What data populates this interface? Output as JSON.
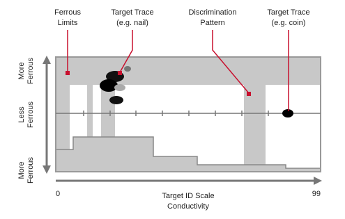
{
  "callouts": [
    {
      "lines": [
        "Ferrous",
        "Limits"
      ]
    },
    {
      "lines": [
        "Target Trace",
        "(e.g. nail)"
      ]
    },
    {
      "lines": [
        "Discrimination",
        "Pattern"
      ]
    },
    {
      "lines": [
        "Target Trace",
        "(e.g. coin)"
      ]
    }
  ],
  "y_axis": {
    "top": [
      "More",
      "Ferrous"
    ],
    "middle": [
      "Less",
      "Ferrous"
    ],
    "bottom": [
      "More",
      "Ferrous"
    ]
  },
  "x_axis": {
    "start": "0",
    "end": "99",
    "title": [
      "Target ID Scale",
      "Conductivity"
    ]
  }
}
